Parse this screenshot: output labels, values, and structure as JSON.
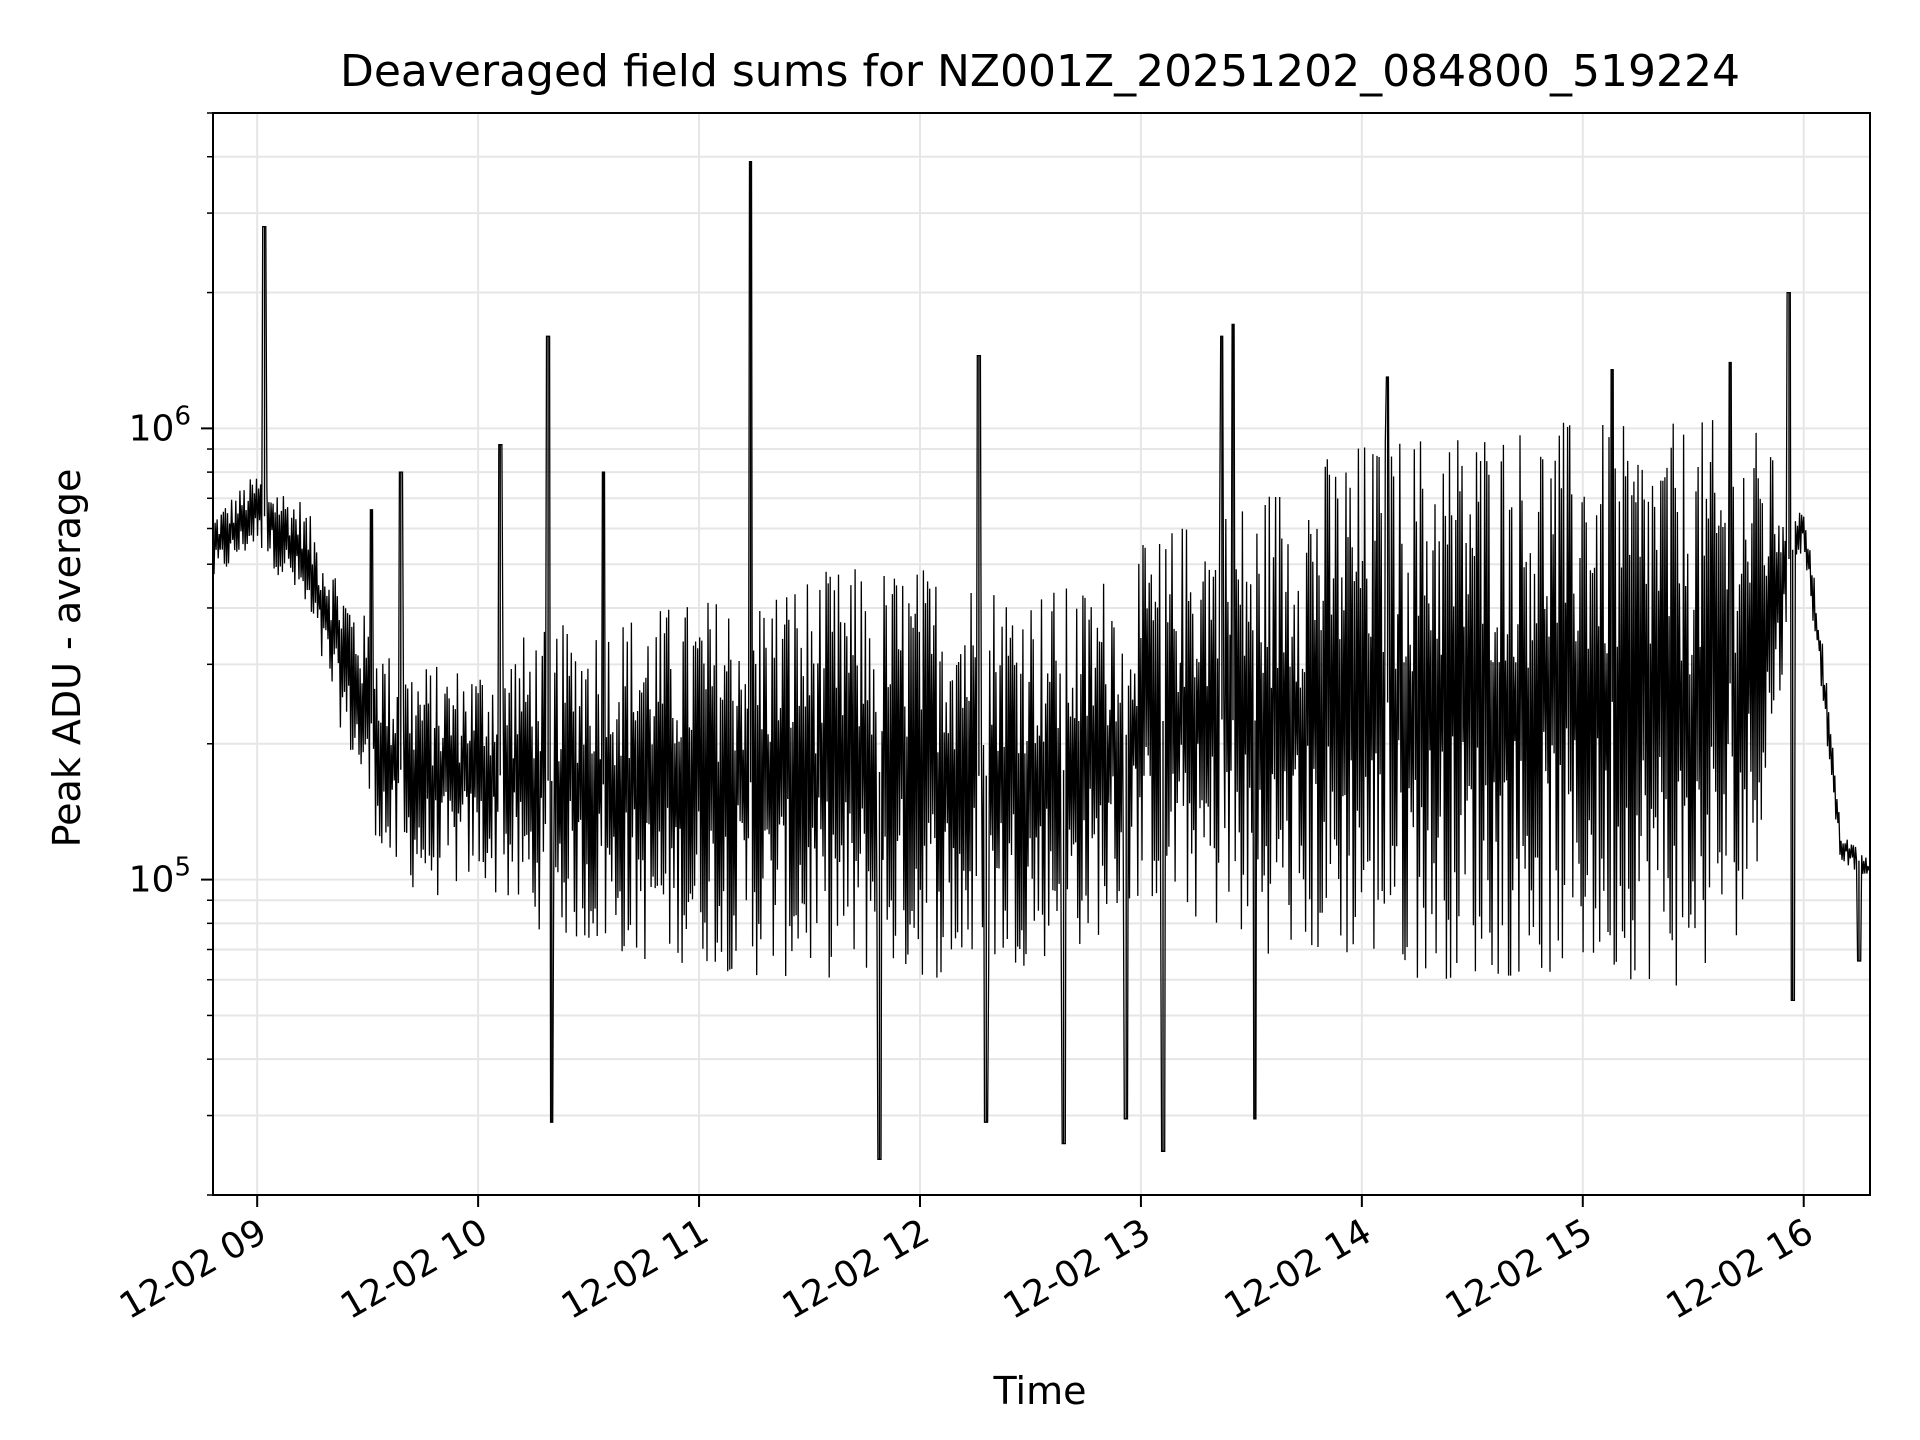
{
  "chart_data": {
    "type": "line",
    "title": "Deaveraged field sums for NZ001Z_20251202_084800_519224",
    "xlabel": "Time",
    "ylabel": "Peak ADU - average",
    "yscale": "log",
    "ylim": [
      20000,
      5000000
    ],
    "xlim": [
      "2025-12-02 08:48",
      "2025-12-02 16:18"
    ],
    "grid": true,
    "line_color": "#000000",
    "grid_color": "#e6e6e6",
    "x_ticks": [
      {
        "value": "2025-12-02 09:00",
        "label": "12-02 09"
      },
      {
        "value": "2025-12-02 10:00",
        "label": "12-02 10"
      },
      {
        "value": "2025-12-02 11:00",
        "label": "12-02 11"
      },
      {
        "value": "2025-12-02 12:00",
        "label": "12-02 12"
      },
      {
        "value": "2025-12-02 13:00",
        "label": "12-02 13"
      },
      {
        "value": "2025-12-02 14:00",
        "label": "12-02 14"
      },
      {
        "value": "2025-12-02 15:00",
        "label": "12-02 15"
      },
      {
        "value": "2025-12-02 16:00",
        "label": "12-02 16"
      }
    ],
    "y_ticks": [
      {
        "value": 100000,
        "base": "10",
        "exp": "5"
      },
      {
        "value": 1000000,
        "base": "10",
        "exp": "6"
      }
    ],
    "envelope": {
      "x": [
        "2025-12-02 08:48",
        "2025-12-02 09:00",
        "2025-12-02 09:12",
        "2025-12-02 09:24",
        "2025-12-02 09:36",
        "2025-12-02 09:48",
        "2025-12-02 10:00",
        "2025-12-02 10:12",
        "2025-12-02 10:30",
        "2025-12-02 10:45",
        "2025-12-02 11:00",
        "2025-12-02 11:15",
        "2025-12-02 11:30",
        "2025-12-02 11:45",
        "2025-12-02 12:00",
        "2025-12-02 12:15",
        "2025-12-02 12:30",
        "2025-12-02 12:45",
        "2025-12-02 13:00",
        "2025-12-02 13:15",
        "2025-12-02 13:30",
        "2025-12-02 13:45",
        "2025-12-02 14:00",
        "2025-12-02 14:15",
        "2025-12-02 14:30",
        "2025-12-02 14:45",
        "2025-12-02 15:00",
        "2025-12-02 15:15",
        "2025-12-02 15:30",
        "2025-12-02 15:45",
        "2025-12-02 15:55",
        "2025-12-02 16:00",
        "2025-12-02 16:05",
        "2025-12-02 16:10",
        "2025-12-02 16:18"
      ],
      "upper": [
        650000,
        800000,
        700000,
        450000,
        320000,
        300000,
        300000,
        350000,
        380000,
        400000,
        420000,
        450000,
        480000,
        500000,
        500000,
        480000,
        450000,
        450000,
        550000,
        650000,
        720000,
        850000,
        950000,
        1000000,
        1050000,
        1050000,
        1050000,
        1000000,
        1050000,
        1050000,
        800000,
        700000,
        350000,
        130000,
        110000
      ],
      "lower": [
        450000,
        550000,
        400000,
        200000,
        100000,
        90000,
        100000,
        80000,
        70000,
        65000,
        65000,
        60000,
        60000,
        60000,
        60000,
        60000,
        65000,
        70000,
        90000,
        80000,
        70000,
        65000,
        65000,
        60000,
        60000,
        60000,
        60000,
        60000,
        55000,
        80000,
        300000,
        550000,
        250000,
        110000,
        100000
      ]
    },
    "spikes": [
      {
        "x": "2025-12-02 09:02",
        "y": 2800000
      },
      {
        "x": "2025-12-02 09:31",
        "y": 660000
      },
      {
        "x": "2025-12-02 09:39",
        "y": 800000
      },
      {
        "x": "2025-12-02 10:06",
        "y": 920000
      },
      {
        "x": "2025-12-02 10:19",
        "y": 1600000
      },
      {
        "x": "2025-12-02 10:34",
        "y": 800000
      },
      {
        "x": "2025-12-02 11:14",
        "y": 3900000
      },
      {
        "x": "2025-12-02 12:16",
        "y": 1450000
      },
      {
        "x": "2025-12-02 13:22",
        "y": 1600000
      },
      {
        "x": "2025-12-02 13:25",
        "y": 1700000
      },
      {
        "x": "2025-12-02 14:07",
        "y": 1300000
      },
      {
        "x": "2025-12-02 15:08",
        "y": 1350000
      },
      {
        "x": "2025-12-02 15:40",
        "y": 1400000
      },
      {
        "x": "2025-12-02 15:56",
        "y": 2000000
      },
      {
        "x": "2025-12-02 15:57",
        "y": 54000
      },
      {
        "x": "2025-12-02 11:49",
        "y": 24000
      },
      {
        "x": "2025-12-02 13:06",
        "y": 25000
      },
      {
        "x": "2025-12-02 12:39",
        "y": 26000
      },
      {
        "x": "2025-12-02 10:20",
        "y": 29000
      },
      {
        "x": "2025-12-02 12:18",
        "y": 29000
      },
      {
        "x": "2025-12-02 12:56",
        "y": 29500
      },
      {
        "x": "2025-12-02 13:31",
        "y": 29500
      },
      {
        "x": "2025-12-02 16:15",
        "y": 66000
      }
    ]
  }
}
